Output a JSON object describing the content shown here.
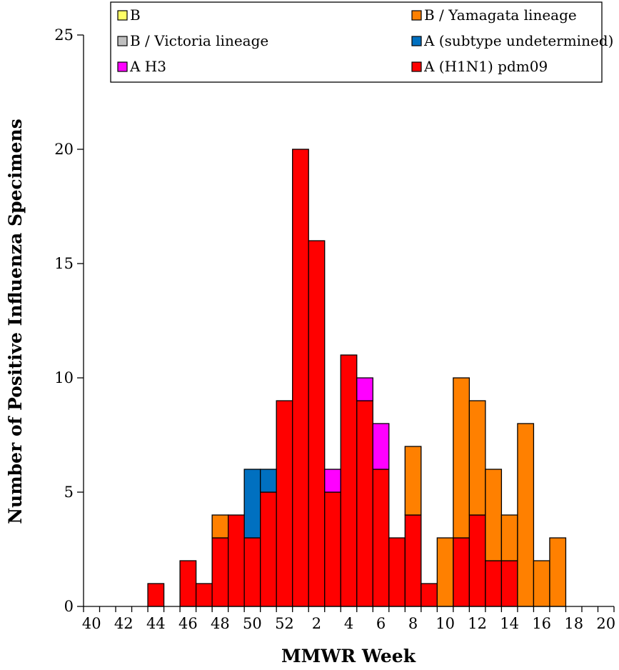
{
  "chart_data": {
    "type": "bar",
    "stacked": true,
    "xlabel": "MMWR Week",
    "ylabel": "Number of Positive Influenza Specimens",
    "ylim": [
      0,
      25
    ],
    "yticks": [
      0,
      5,
      10,
      15,
      20,
      25
    ],
    "categories": [
      40,
      41,
      42,
      43,
      44,
      45,
      46,
      47,
      48,
      49,
      50,
      51,
      52,
      1,
      2,
      3,
      4,
      5,
      6,
      7,
      8,
      9,
      10,
      11,
      12,
      13,
      14,
      15,
      16,
      17,
      18,
      19,
      20
    ],
    "x_tick_labels": [
      "40",
      "42",
      "44",
      "46",
      "48",
      "50",
      "52",
      "2",
      "4",
      "6",
      "8",
      "10",
      "12",
      "14",
      "16",
      "18",
      "20"
    ],
    "legend_position": "top",
    "series": [
      {
        "name": "A (H1N1) pdm09",
        "color": "#ff0000",
        "values": [
          0,
          0,
          0,
          0,
          1,
          0,
          2,
          1,
          3,
          4,
          3,
          5,
          9,
          20,
          16,
          5,
          11,
          9,
          6,
          3,
          4,
          1,
          0,
          3,
          4,
          2,
          2,
          0,
          0,
          0,
          0,
          0,
          0
        ]
      },
      {
        "name": "A H3",
        "color": "#ff00ff",
        "values": [
          0,
          0,
          0,
          0,
          0,
          0,
          0,
          0,
          0,
          0,
          0,
          0,
          0,
          0,
          0,
          1,
          0,
          1,
          2,
          0,
          0,
          0,
          0,
          0,
          0,
          0,
          0,
          0,
          0,
          0,
          0,
          0,
          0
        ]
      },
      {
        "name": "A (subtype undetermined)",
        "color": "#0070c0",
        "values": [
          0,
          0,
          0,
          0,
          0,
          0,
          0,
          0,
          0,
          0,
          3,
          1,
          0,
          0,
          0,
          0,
          0,
          0,
          0,
          0,
          0,
          0,
          0,
          0,
          0,
          0,
          0,
          0,
          0,
          0,
          0,
          0,
          0
        ]
      },
      {
        "name": "B / Victoria lineage",
        "color": "#bfbfbf",
        "values": [
          0,
          0,
          0,
          0,
          0,
          0,
          0,
          0,
          0,
          0,
          0,
          0,
          0,
          0,
          0,
          0,
          0,
          0,
          0,
          0,
          0,
          0,
          0,
          0,
          0,
          0,
          0,
          0,
          0,
          0,
          0,
          0,
          0
        ]
      },
      {
        "name": "B / Yamagata lineage",
        "color": "#ff8000",
        "values": [
          0,
          0,
          0,
          0,
          0,
          0,
          0,
          0,
          1,
          0,
          0,
          0,
          0,
          0,
          0,
          0,
          0,
          0,
          0,
          0,
          3,
          0,
          3,
          7,
          5,
          4,
          2,
          8,
          2,
          3,
          0,
          0,
          0
        ]
      },
      {
        "name": "B",
        "color": "#ffff66",
        "values": [
          0,
          0,
          0,
          0,
          0,
          0,
          0,
          0,
          0,
          0,
          0,
          0,
          0,
          0,
          0,
          0,
          0,
          0,
          0,
          0,
          0,
          0,
          0,
          0,
          0,
          0,
          0,
          0,
          0,
          0,
          0,
          0,
          0
        ]
      }
    ],
    "legend_order": [
      "B",
      "B / Yamagata lineage",
      "B / Victoria lineage",
      "A (subtype undetermined)",
      "A H3",
      "A (H1N1) pdm09"
    ]
  }
}
